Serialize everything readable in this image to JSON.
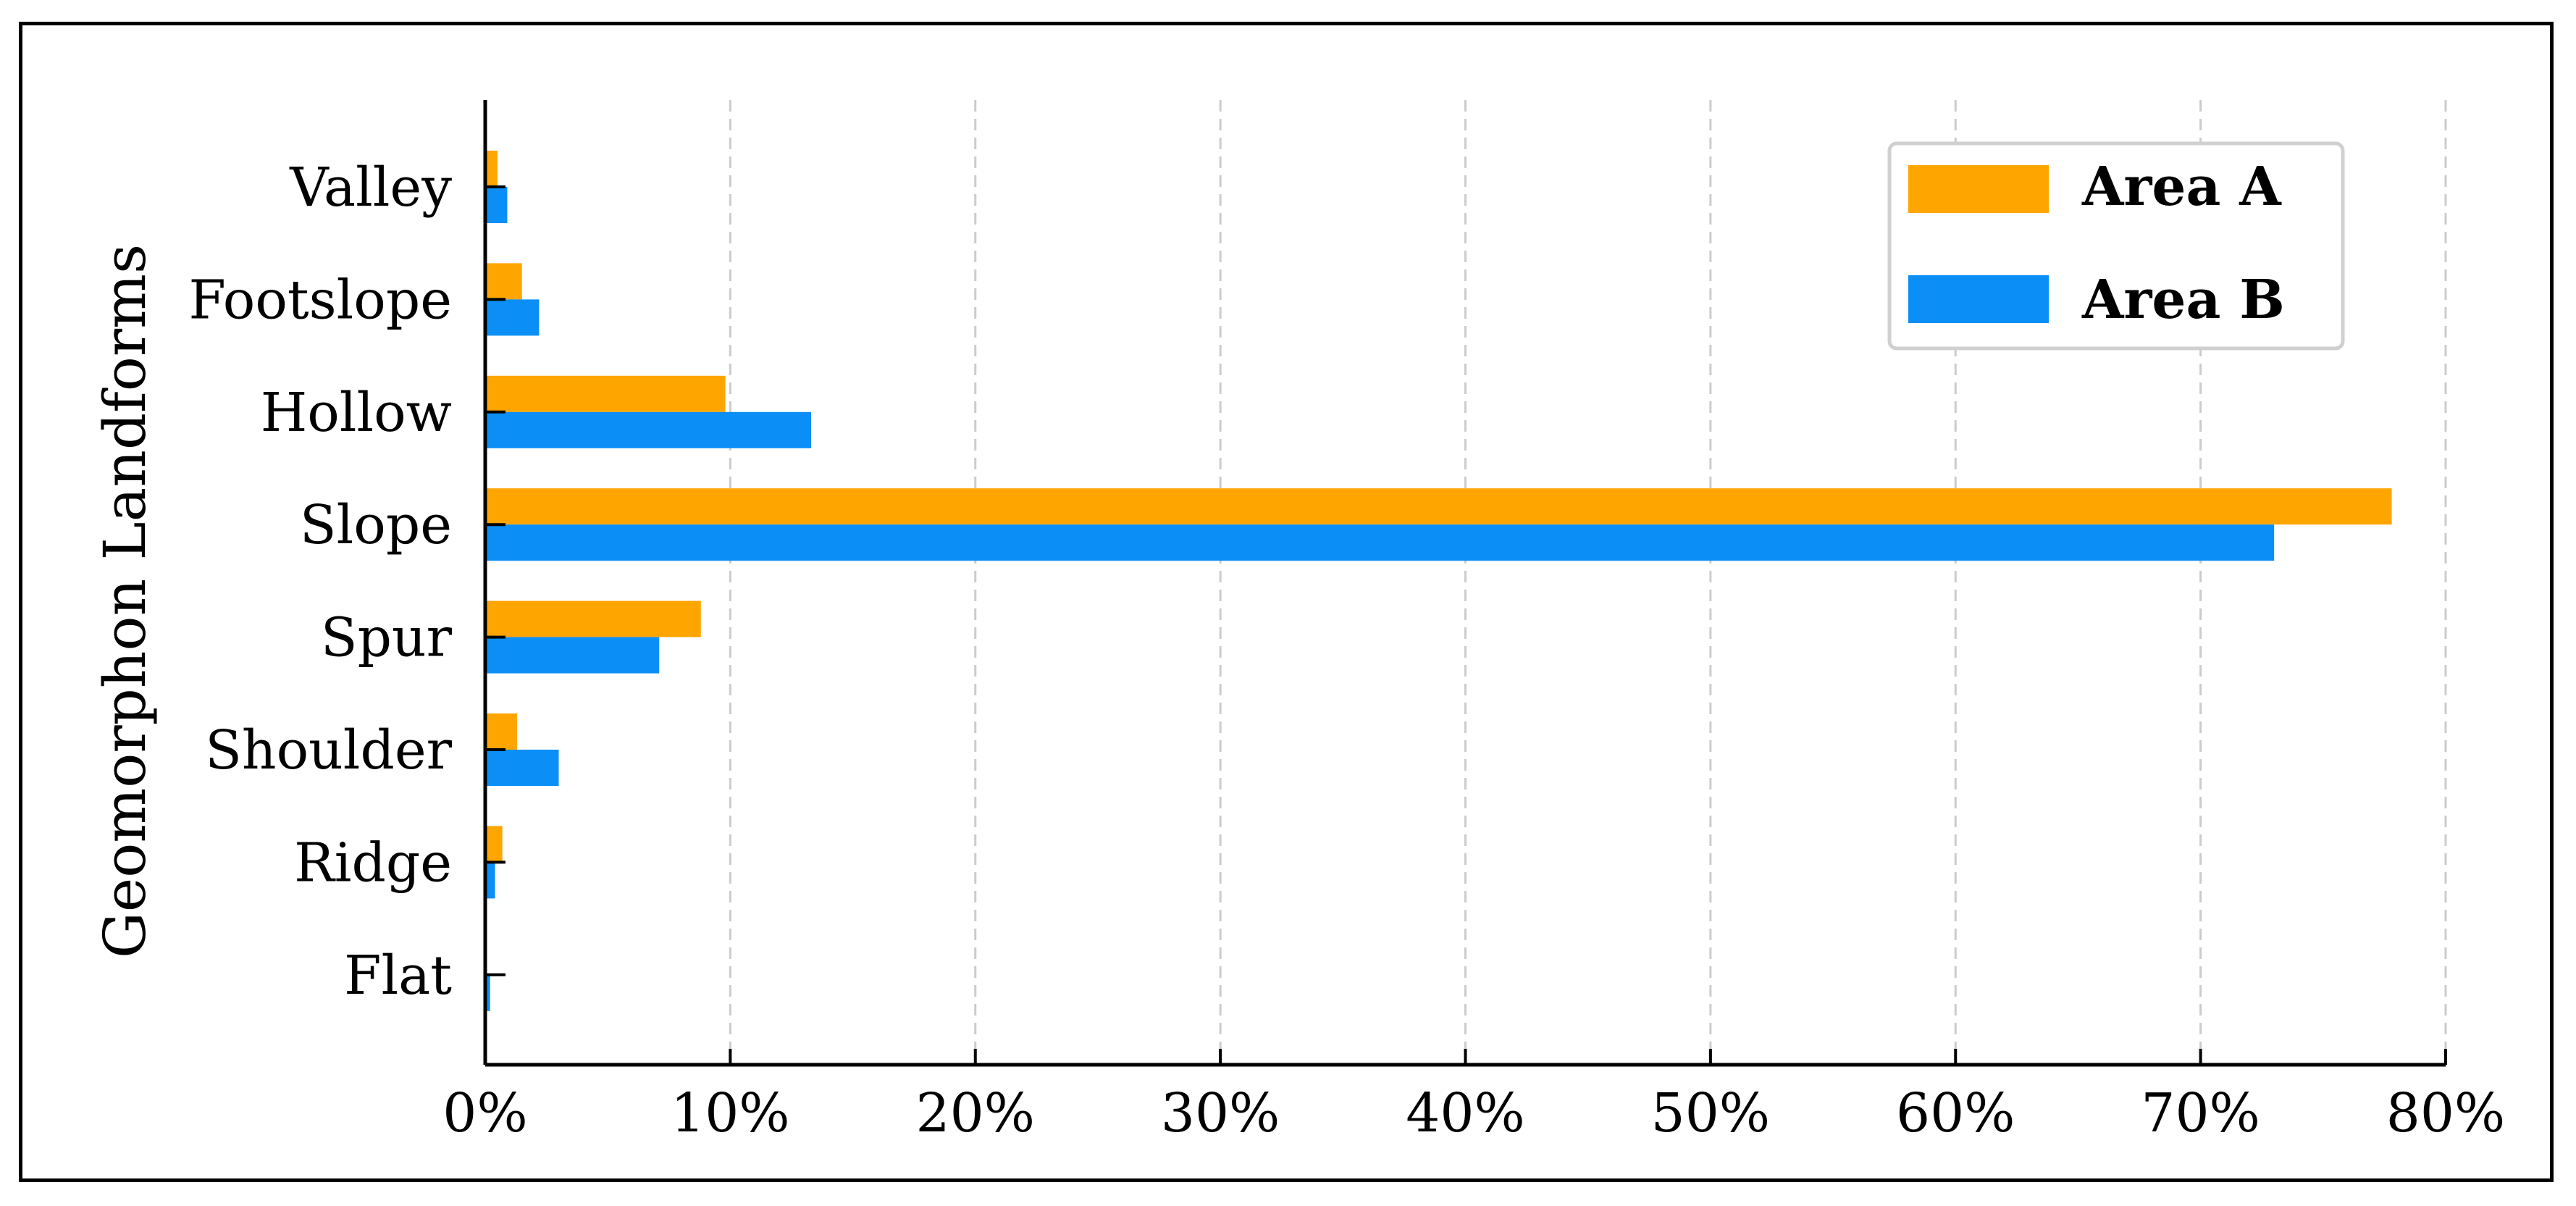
{
  "chart_data": {
    "type": "bar",
    "orientation": "horizontal",
    "categories": [
      "Valley",
      "Footslope",
      "Hollow",
      "Slope",
      "Spur",
      "Shoulder",
      "Ridge",
      "Flat"
    ],
    "series": [
      {
        "name": "Area A",
        "color": "#FFA500",
        "values": [
          0.5,
          1.5,
          9.8,
          77.8,
          8.8,
          1.3,
          0.7,
          0.0
        ]
      },
      {
        "name": "Area B",
        "color": "#0B8FF6",
        "values": [
          0.9,
          2.2,
          13.3,
          73.0,
          7.1,
          3.0,
          0.4,
          0.2
        ]
      }
    ],
    "xlabel": "",
    "ylabel": "Geomorphon Landforms",
    "xlim": [
      0,
      80
    ],
    "x_ticks": [
      "0%",
      "10%",
      "20%",
      "30%",
      "40%",
      "50%",
      "60%",
      "70%",
      "80%"
    ],
    "grid": "vertical-dashed",
    "legend_position": "top-right"
  }
}
